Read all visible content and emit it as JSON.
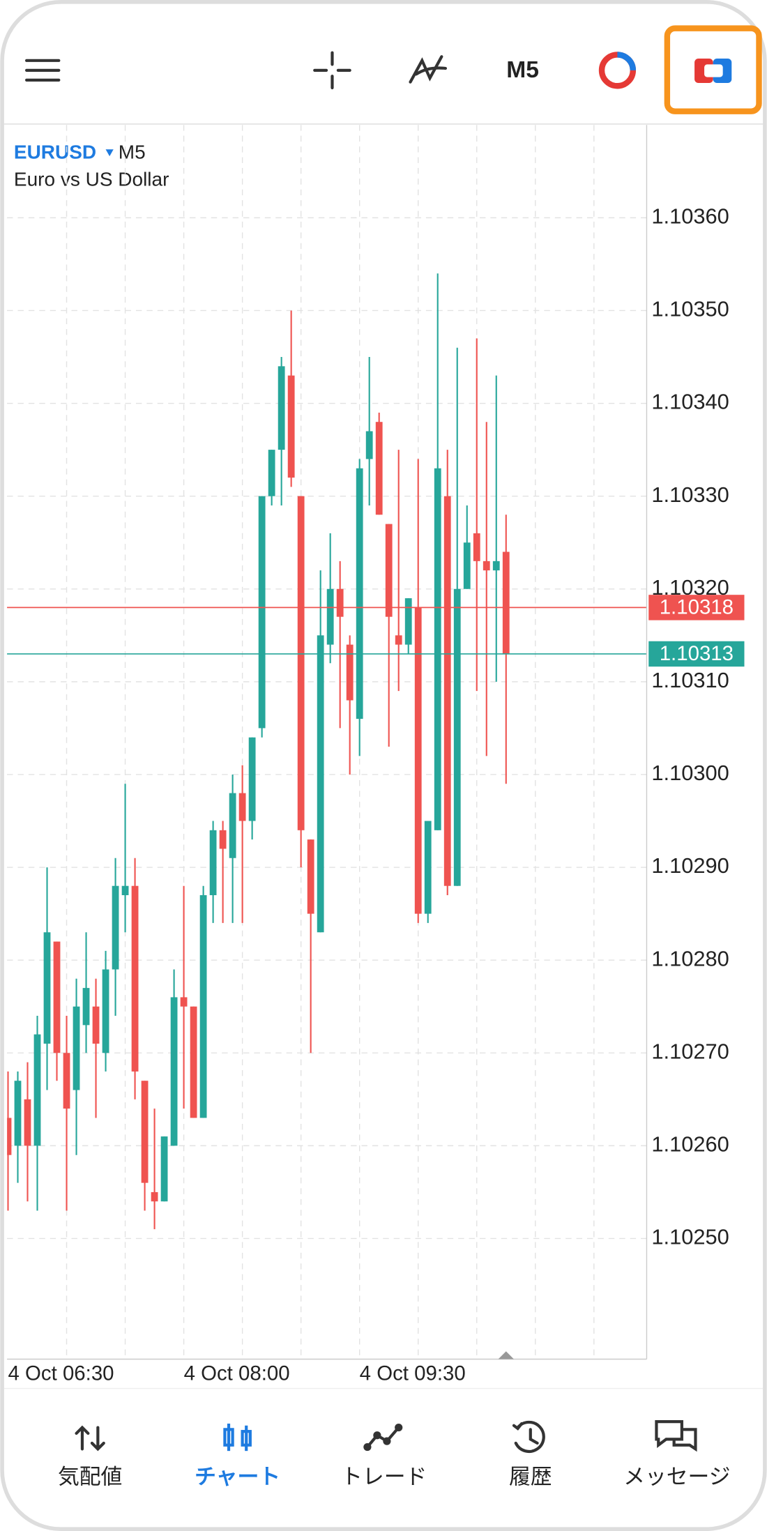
{
  "toolbar": {
    "timeframe": "M5"
  },
  "chart_data": {
    "type": "candlestick",
    "symbol": "EURUSD",
    "timeframe": "M5",
    "description": "Euro vs US Dollar",
    "categories": [
      "4 Oct 06:30",
      null,
      null,
      null,
      null,
      null,
      null,
      null,
      null,
      null,
      null,
      null,
      null,
      null,
      null,
      null,
      null,
      null,
      "4 Oct 08:00",
      null,
      null,
      null,
      null,
      null,
      null,
      null,
      null,
      null,
      null,
      null,
      null,
      null,
      null,
      null,
      null,
      null,
      "4 Oct 09:30",
      null,
      null,
      null,
      null,
      null,
      null,
      null,
      null,
      null,
      null,
      null,
      null,
      null,
      null,
      null
    ],
    "open": [
      1.10263,
      1.1026,
      1.10265,
      1.1026,
      1.10271,
      1.10282,
      1.1027,
      1.10266,
      1.10273,
      1.10275,
      1.1027,
      1.10279,
      1.10287,
      1.10288,
      1.10267,
      1.10255,
      1.10254,
      1.1026,
      1.10276,
      1.10275,
      1.10263,
      1.10287,
      1.10294,
      1.10291,
      1.10298,
      1.10295,
      1.10305,
      1.1033,
      1.10335,
      1.10343,
      1.1033,
      1.10293,
      1.10283,
      1.10314,
      1.1032,
      1.10314,
      1.10306,
      1.10334,
      1.10338,
      1.10327,
      1.10315,
      1.10314,
      1.10318,
      1.10285,
      1.10294,
      1.1033,
      1.10288,
      1.1032,
      1.10326,
      1.10323,
      1.10322,
      1.10324
    ],
    "high": [
      1.10268,
      1.10268,
      1.10269,
      1.10274,
      1.1029,
      1.10282,
      1.10274,
      1.10278,
      1.10283,
      1.10278,
      1.10281,
      1.10291,
      1.10299,
      1.10291,
      1.10267,
      1.10264,
      1.10261,
      1.10279,
      1.10288,
      1.10275,
      1.10288,
      1.10295,
      1.10295,
      1.103,
      1.10301,
      1.10304,
      1.1033,
      1.10335,
      1.10345,
      1.1035,
      1.1033,
      1.10293,
      1.10322,
      1.10326,
      1.10323,
      1.10315,
      1.10334,
      1.10345,
      1.10339,
      1.10327,
      1.10335,
      1.10319,
      1.10334,
      1.10295,
      1.10354,
      1.10335,
      1.10346,
      1.10329,
      1.10347,
      1.10338,
      1.10343,
      1.10328
    ],
    "low": [
      1.10253,
      1.10256,
      1.10254,
      1.10253,
      1.10266,
      1.10267,
      1.10253,
      1.10259,
      1.1027,
      1.10263,
      1.10268,
      1.10274,
      1.10283,
      1.10265,
      1.10253,
      1.10251,
      1.10254,
      1.1026,
      1.10264,
      1.10263,
      1.10263,
      1.10284,
      1.10284,
      1.10284,
      1.10284,
      1.10293,
      1.10304,
      1.10329,
      1.10329,
      1.10331,
      1.1029,
      1.1027,
      1.10283,
      1.10312,
      1.10305,
      1.103,
      1.10302,
      1.10329,
      1.10328,
      1.10303,
      1.10309,
      1.10313,
      1.10284,
      1.10284,
      1.10294,
      1.10287,
      1.10288,
      1.1032,
      1.10309,
      1.10302,
      1.1031,
      1.10299
    ],
    "close": [
      1.10259,
      1.10267,
      1.1026,
      1.10272,
      1.10283,
      1.1027,
      1.10264,
      1.10275,
      1.10277,
      1.10271,
      1.10279,
      1.10288,
      1.10288,
      1.10268,
      1.10256,
      1.10254,
      1.10261,
      1.10276,
      1.10275,
      1.10263,
      1.10287,
      1.10294,
      1.10292,
      1.10298,
      1.10295,
      1.10304,
      1.1033,
      1.10335,
      1.10344,
      1.10332,
      1.10294,
      1.10285,
      1.10315,
      1.1032,
      1.10317,
      1.10308,
      1.10333,
      1.10337,
      1.10328,
      1.10317,
      1.10314,
      1.10319,
      1.10285,
      1.10295,
      1.10333,
      1.10288,
      1.1032,
      1.10325,
      1.10323,
      1.10322,
      1.10323,
      1.10313
    ],
    "up_color": "#26a69a",
    "down_color": "#ef5350",
    "ylim": [
      1.10237,
      1.1037
    ],
    "yticks": [
      {
        "value": 1.1025,
        "label": "1.10250"
      },
      {
        "value": 1.1026,
        "label": "1.10260"
      },
      {
        "value": 1.1027,
        "label": "1.10270"
      },
      {
        "value": 1.1028,
        "label": "1.10280"
      },
      {
        "value": 1.1029,
        "label": "1.10290"
      },
      {
        "value": 1.103,
        "label": "1.10300"
      },
      {
        "value": 1.1031,
        "label": "1.10310"
      },
      {
        "value": 1.1032,
        "label": "1.10320"
      },
      {
        "value": 1.1033,
        "label": "1.10330"
      },
      {
        "value": 1.1034,
        "label": "1.10340"
      },
      {
        "value": 1.1035,
        "label": "1.10350"
      },
      {
        "value": 1.1036,
        "label": "1.10360"
      }
    ],
    "grid": true,
    "ask_line": {
      "value": 1.10318,
      "color": "#ef5350"
    },
    "bid_line": {
      "value": 1.10313,
      "color": "#26a69a"
    }
  },
  "nav": {
    "items": [
      "気配値",
      "チャート",
      "トレード",
      "履歴",
      "メッセージ"
    ],
    "active": 1,
    "active_color": "#1e7be0"
  }
}
